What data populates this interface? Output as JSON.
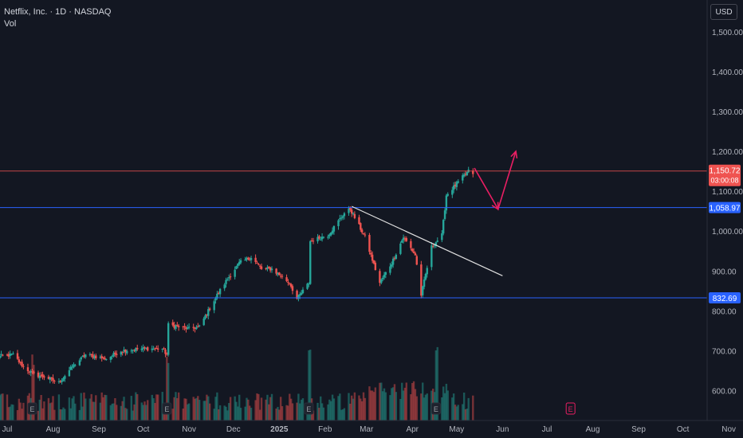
{
  "header": {
    "title": "Netflix, Inc. · 1D · NASDAQ",
    "volume_label": "Vol",
    "currency_button": "USD"
  },
  "colors": {
    "background": "#131722",
    "up": "#26a69a",
    "down": "#ef5350",
    "support_line": "#2962ff",
    "resistance_line": "#ef5350",
    "trendline": "#e0e0e0",
    "arrow": "#e91e63"
  },
  "chart_data": {
    "type": "candlestick",
    "y_axis": {
      "ticks": [
        600,
        700,
        800,
        900,
        1000,
        1100,
        1200,
        1300,
        1400,
        1500
      ],
      "tick_labels": [
        "600.00",
        "700.00",
        "800.00",
        "900.00",
        "1,000.00",
        "1,100.00",
        "1,200.00",
        "1,300.00",
        "1,400.00",
        "1,500.00"
      ],
      "range": [
        560,
        1560
      ]
    },
    "x_axis": {
      "tick_labels": [
        "Jul",
        "Aug",
        "Sep",
        "Oct",
        "Nov",
        "Dec",
        "2025",
        "Feb",
        "Mar",
        "Apr",
        "May",
        "Jun",
        "Jul",
        "Aug",
        "Sep",
        "Oct",
        "Nov"
      ],
      "tick_dates": [
        "2024-07-01",
        "2024-08-01",
        "2024-09-01",
        "2024-10-01",
        "2024-11-01",
        "2024-12-01",
        "2025-01-01",
        "2025-02-01",
        "2025-03-01",
        "2025-04-01",
        "2025-05-01",
        "2025-06-01",
        "2025-07-01",
        "2025-08-01",
        "2025-09-01",
        "2025-10-01",
        "2025-11-01"
      ]
    },
    "price_path": [
      [
        "2024-06-24",
        685
      ],
      [
        "2024-07-05",
        690
      ],
      [
        "2024-07-12",
        660
      ],
      [
        "2024-07-19",
        640
      ],
      [
        "2024-07-26",
        635
      ],
      [
        "2024-08-05",
        620
      ],
      [
        "2024-08-14",
        660
      ],
      [
        "2024-08-23",
        690
      ],
      [
        "2024-09-06",
        680
      ],
      [
        "2024-09-16",
        700
      ],
      [
        "2024-09-30",
        705
      ],
      [
        "2024-10-14",
        705
      ],
      [
        "2024-10-17",
        690
      ],
      [
        "2024-10-18",
        765
      ],
      [
        "2024-11-01",
        755
      ],
      [
        "2024-11-08",
        760
      ],
      [
        "2024-11-20",
        840
      ],
      [
        "2024-11-27",
        880
      ],
      [
        "2024-12-05",
        920
      ],
      [
        "2024-12-13",
        935
      ],
      [
        "2024-12-20",
        905
      ],
      [
        "2024-12-27",
        905
      ],
      [
        "2025-01-08",
        870
      ],
      [
        "2025-01-13",
        830
      ],
      [
        "2025-01-21",
        870
      ],
      [
        "2025-01-22",
        975
      ],
      [
        "2025-02-03",
        990
      ],
      [
        "2025-02-14",
        1045
      ],
      [
        "2025-02-18",
        1055
      ],
      [
        "2025-02-28",
        985
      ],
      [
        "2025-03-10",
        870
      ],
      [
        "2025-03-18",
        920
      ],
      [
        "2025-03-26",
        985
      ],
      [
        "2025-04-03",
        940
      ],
      [
        "2025-04-07",
        840
      ],
      [
        "2025-04-14",
        960
      ],
      [
        "2025-04-21",
        990
      ],
      [
        "2025-04-24",
        1090
      ],
      [
        "2025-05-05",
        1135
      ],
      [
        "2025-05-09",
        1150
      ],
      [
        "2025-05-12",
        1145
      ]
    ],
    "volume_range": [
      0,
      330
    ],
    "horizontal_levels": [
      {
        "value": 1150.72,
        "label": "1,150.72",
        "sublabel": "03:00:08",
        "style": "price"
      },
      {
        "value": 1058.97,
        "label": "1,058.97",
        "style": "level"
      },
      {
        "value": 832.69,
        "label": "832.69",
        "style": "level"
      }
    ],
    "trendline": [
      [
        "2025-02-19",
        1062
      ],
      [
        "2025-06-01",
        888
      ]
    ],
    "projection_arrow": [
      [
        "2025-05-13",
        1158
      ],
      [
        "2025-05-29",
        1055
      ],
      [
        "2025-06-10",
        1200
      ]
    ],
    "earnings_markers": [
      {
        "date": "2024-07-18",
        "label": "E"
      },
      {
        "date": "2024-10-17",
        "label": "E"
      },
      {
        "date": "2025-01-21",
        "label": "E"
      },
      {
        "date": "2025-04-17",
        "label": "E"
      },
      {
        "date": "2025-07-17",
        "label": "E",
        "upcoming": true
      }
    ]
  }
}
